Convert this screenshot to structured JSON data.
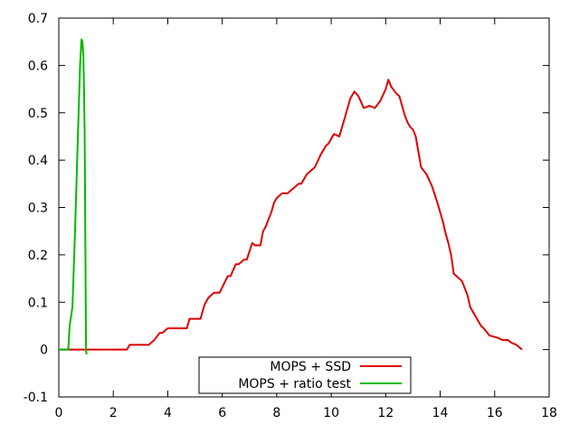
{
  "chart_data": {
    "type": "line",
    "title": "",
    "xlabel": "",
    "ylabel": "",
    "xlim": [
      0,
      18
    ],
    "ylim": [
      -0.1,
      0.7
    ],
    "x_ticks": [
      0,
      2,
      4,
      6,
      8,
      10,
      12,
      14,
      16,
      18
    ],
    "y_ticks": [
      -0.1,
      0,
      0.1,
      0.2,
      0.3,
      0.4,
      0.5,
      0.6,
      0.7
    ],
    "grid": false,
    "legend_position": "bottom-center",
    "series": [
      {
        "name": "MOPS + SSD",
        "color": "#dd0000",
        "x": [
          0,
          2.5,
          2.6,
          3.3,
          3.5,
          3.7,
          3.8,
          4.0,
          4.2,
          4.7,
          4.8,
          5.2,
          5.35,
          5.5,
          5.7,
          5.9,
          6.2,
          6.3,
          6.5,
          6.6,
          6.8,
          6.9,
          7.1,
          7.2,
          7.4,
          7.5,
          7.6,
          7.8,
          7.9,
          8.0,
          8.1,
          8.2,
          8.4,
          8.6,
          8.8,
          8.9,
          9.0,
          9.1,
          9.3,
          9.4,
          9.6,
          9.7,
          9.8,
          9.9,
          10.1,
          10.3,
          10.5,
          10.7,
          10.85,
          11.0,
          11.2,
          11.4,
          11.6,
          11.8,
          12.0,
          12.1,
          12.2,
          12.4,
          12.5,
          12.7,
          12.8,
          12.9,
          13.0,
          13.1,
          13.3,
          13.5,
          13.7,
          13.9,
          14.1,
          14.2,
          14.3,
          14.4,
          14.5,
          14.6,
          14.8,
          15.0,
          15.1,
          15.3,
          15.5,
          15.6,
          15.8,
          16.1,
          16.3,
          16.5,
          16.6,
          16.8,
          17.0
        ],
        "y": [
          0,
          0,
          0.01,
          0.01,
          0.02,
          0.035,
          0.035,
          0.045,
          0.045,
          0.045,
          0.065,
          0.065,
          0.095,
          0.11,
          0.12,
          0.12,
          0.155,
          0.155,
          0.18,
          0.18,
          0.19,
          0.19,
          0.225,
          0.22,
          0.22,
          0.25,
          0.26,
          0.29,
          0.31,
          0.32,
          0.325,
          0.33,
          0.33,
          0.34,
          0.35,
          0.35,
          0.36,
          0.37,
          0.38,
          0.385,
          0.41,
          0.42,
          0.43,
          0.435,
          0.455,
          0.45,
          0.49,
          0.53,
          0.545,
          0.535,
          0.51,
          0.515,
          0.51,
          0.525,
          0.55,
          0.57,
          0.555,
          0.54,
          0.535,
          0.495,
          0.48,
          0.47,
          0.465,
          0.45,
          0.385,
          0.37,
          0.345,
          0.31,
          0.27,
          0.245,
          0.225,
          0.2,
          0.16,
          0.155,
          0.145,
          0.115,
          0.09,
          0.07,
          0.05,
          0.045,
          0.03,
          0.025,
          0.02,
          0.02,
          0.015,
          0.01,
          0.0
        ]
      },
      {
        "name": "MOPS + ratio test",
        "color": "#00bb00",
        "x": [
          0,
          0.35,
          0.4,
          0.5,
          0.6,
          0.7,
          0.78,
          0.83,
          0.87,
          0.9,
          0.92,
          0.95,
          1.0,
          1.02
        ],
        "y": [
          0,
          0,
          0.05,
          0.09,
          0.26,
          0.45,
          0.6,
          0.655,
          0.65,
          0.62,
          0.57,
          0.45,
          0.0,
          -0.01
        ]
      }
    ]
  }
}
